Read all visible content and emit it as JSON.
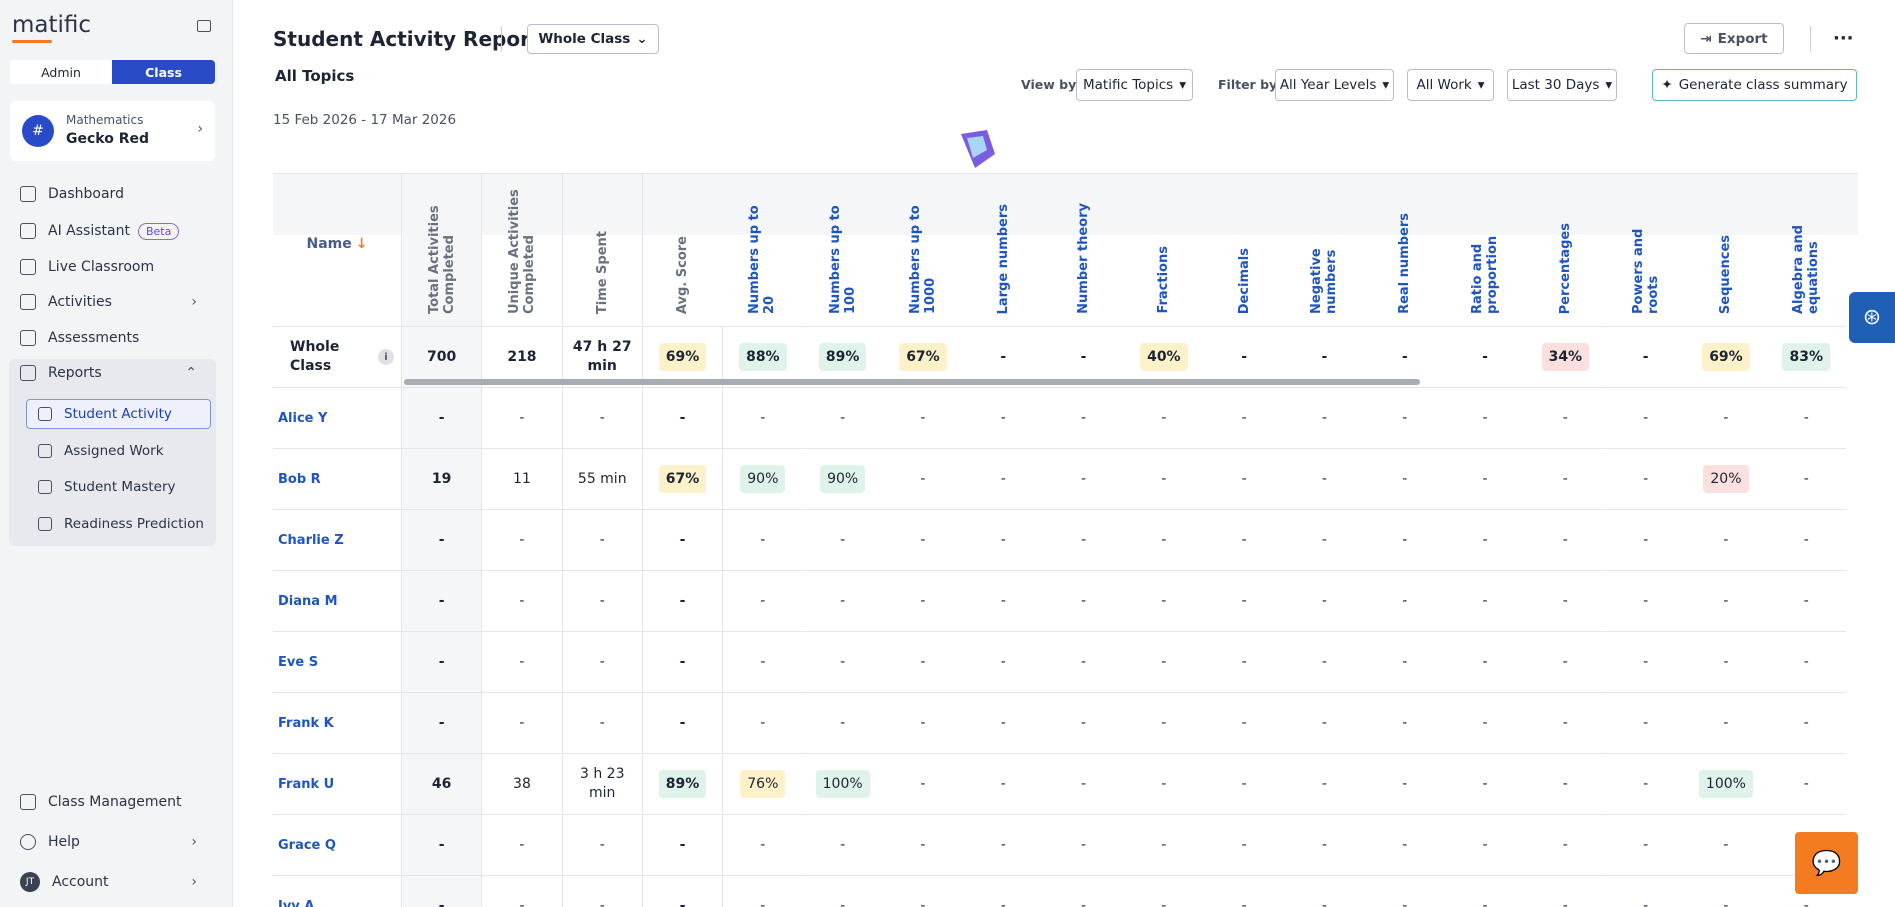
{
  "sidebar": {
    "logo": "matific",
    "tabs": [
      "Admin",
      "Class"
    ],
    "class_card": {
      "subject": "Mathematics",
      "name": "Gecko Red"
    },
    "nav": [
      {
        "label": "Dashboard"
      },
      {
        "label": "AI Assistant",
        "badge": "Beta"
      },
      {
        "label": "Live Classroom"
      },
      {
        "label": "Activities"
      },
      {
        "label": "Assessments"
      },
      {
        "label": "Reports"
      }
    ],
    "reports_sub": [
      "Student Activity",
      "Assigned Work",
      "Student Mastery",
      "Readiness Prediction"
    ],
    "bottom": [
      "Class Management",
      "Help",
      "Account"
    ],
    "avatar": "JT"
  },
  "header": {
    "title": "Student Activity Report",
    "group": "Whole Class",
    "export": "Export",
    "subtitle": "All Topics",
    "dates": "15 Feb 2026 - 17 Mar 2026",
    "view_by_label": "View by",
    "view_by": "Matific Topics",
    "filter_by_label": "Filter by",
    "filters": [
      "All Year Levels",
      "All Work",
      "Last 30 Days"
    ],
    "summary": "Generate class summary"
  },
  "table": {
    "columns": [
      "Name",
      "Total Activities Completed",
      "Unique Activities Completed",
      "Time Spent",
      "Avg. Score",
      "Numbers up to 20",
      "Numbers up to 100",
      "Numbers up to 1000",
      "Large numbers",
      "Number theory",
      "Fractions",
      "Decimals",
      "Negative numbers",
      "Real numbers",
      "Ratio and proportion",
      "Percentages",
      "Powers and roots",
      "Sequences",
      "Algebra and equations"
    ],
    "rows": [
      [
        "Whole Class",
        "700",
        "218",
        "47 h 27 min",
        "69%",
        "88%",
        "89%",
        "67%",
        "-",
        "-",
        "40%",
        "-",
        "-",
        "-",
        "-",
        "34%",
        "-",
        "69%",
        "83%"
      ],
      [
        "Alice Y",
        "-",
        "-",
        "-",
        "-",
        "-",
        "-",
        "-",
        "-",
        "-",
        "-",
        "-",
        "-",
        "-",
        "-",
        "-",
        "-",
        "-",
        "-"
      ],
      [
        "Bob R",
        "19",
        "11",
        "55 min",
        "67%",
        "90%",
        "90%",
        "-",
        "-",
        "-",
        "-",
        "-",
        "-",
        "-",
        "-",
        "-",
        "-",
        "20%",
        "-"
      ],
      [
        "Charlie Z",
        "-",
        "-",
        "-",
        "-",
        "-",
        "-",
        "-",
        "-",
        "-",
        "-",
        "-",
        "-",
        "-",
        "-",
        "-",
        "-",
        "-",
        "-"
      ],
      [
        "Diana M",
        "-",
        "-",
        "-",
        "-",
        "-",
        "-",
        "-",
        "-",
        "-",
        "-",
        "-",
        "-",
        "-",
        "-",
        "-",
        "-",
        "-",
        "-"
      ],
      [
        "Eve S",
        "-",
        "-",
        "-",
        "-",
        "-",
        "-",
        "-",
        "-",
        "-",
        "-",
        "-",
        "-",
        "-",
        "-",
        "-",
        "-",
        "-",
        "-"
      ],
      [
        "Frank K",
        "-",
        "-",
        "-",
        "-",
        "-",
        "-",
        "-",
        "-",
        "-",
        "-",
        "-",
        "-",
        "-",
        "-",
        "-",
        "-",
        "-",
        "-"
      ],
      [
        "Frank U",
        "46",
        "38",
        "3 h 23 min",
        "89%",
        "76%",
        "100%",
        "-",
        "-",
        "-",
        "-",
        "-",
        "-",
        "-",
        "-",
        "-",
        "-",
        "100%",
        "-"
      ],
      [
        "Grace Q",
        "-",
        "-",
        "-",
        "-",
        "-",
        "-",
        "-",
        "-",
        "-",
        "-",
        "-",
        "-",
        "-",
        "-",
        "-",
        "-",
        "-",
        "-"
      ],
      [
        "Ivy A",
        "-",
        "-",
        "-",
        "-",
        "-",
        "-",
        "-",
        "-",
        "-",
        "-",
        "-",
        "-",
        "-",
        "-",
        "-",
        "-",
        "-",
        "-"
      ]
    ]
  }
}
